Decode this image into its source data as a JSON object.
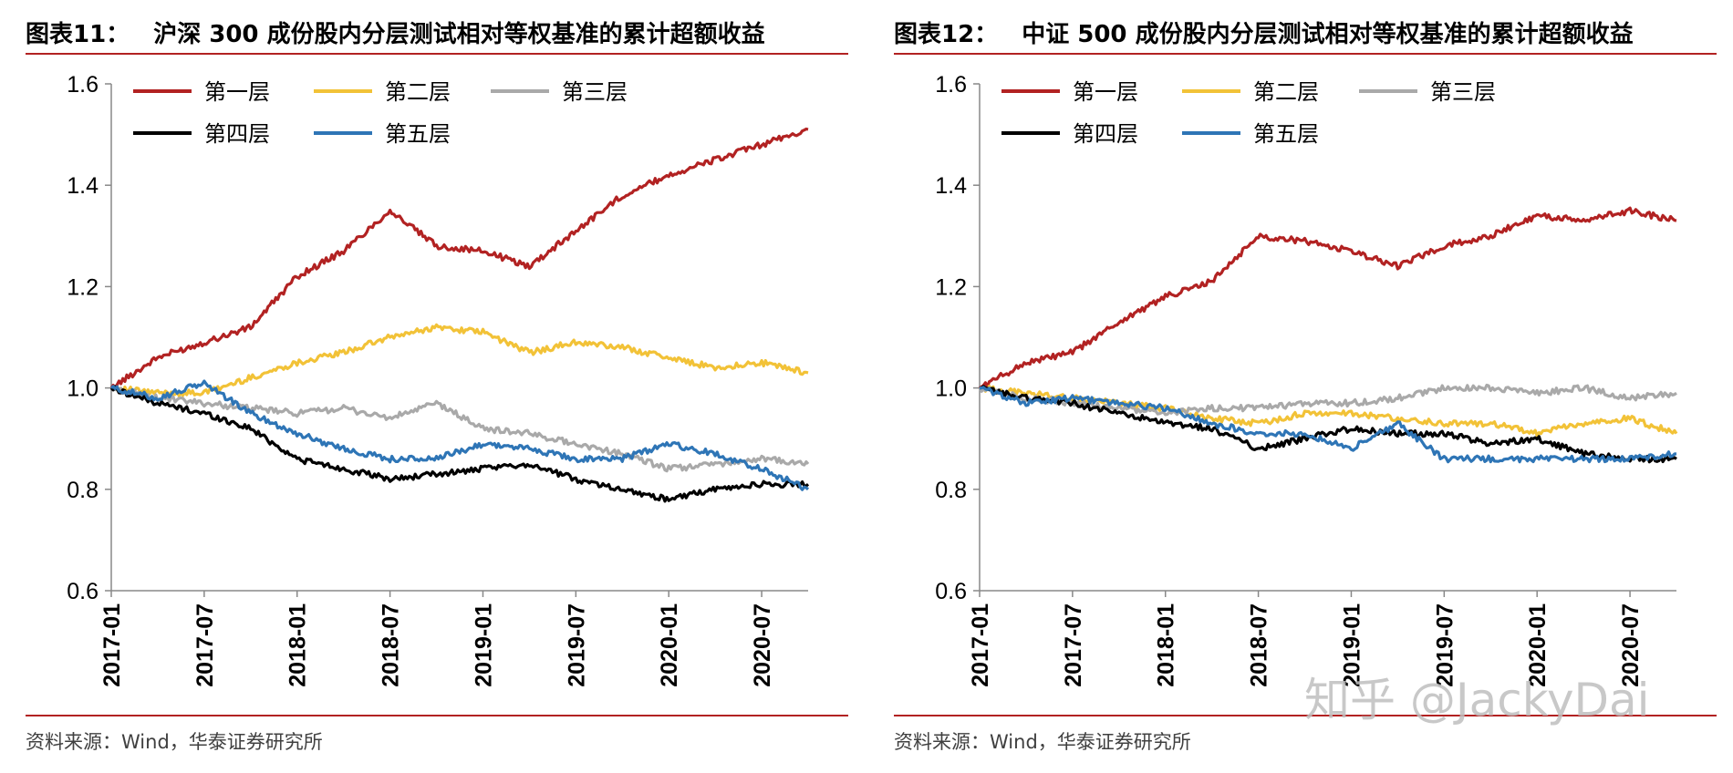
{
  "page": {
    "watermark": "知乎 @JackyDai",
    "source": "资料来源：Wind，华泰证券研究所"
  },
  "chart_data": [
    {
      "type": "line",
      "figure_label": "图表11：",
      "title": "沪深 300 成份股内分层测试相对等权基准的累计超额收益",
      "ylim": [
        0.6,
        1.6
      ],
      "yticks": [
        "0.6",
        "0.8",
        "1.0",
        "1.2",
        "1.4",
        "1.6"
      ],
      "xlim": [
        "2017-01",
        "2020-10"
      ],
      "xticks": [
        "2017-01",
        "2017-07",
        "2018-01",
        "2018-07",
        "2019-01",
        "2019-07",
        "2020-01",
        "2020-07"
      ],
      "grid": false,
      "legend_position": "top-left",
      "x": [
        "2017-01",
        "2017-04",
        "2017-07",
        "2017-10",
        "2018-01",
        "2018-04",
        "2018-07",
        "2018-10",
        "2019-01",
        "2019-04",
        "2019-07",
        "2019-10",
        "2020-01",
        "2020-04",
        "2020-07",
        "2020-10"
      ],
      "series": [
        {
          "name": "第一层",
          "color": "#b22222",
          "values": [
            1.0,
            1.06,
            1.09,
            1.12,
            1.22,
            1.27,
            1.35,
            1.28,
            1.27,
            1.24,
            1.31,
            1.38,
            1.42,
            1.45,
            1.48,
            1.51
          ]
        },
        {
          "name": "第二层",
          "color": "#f2c237",
          "values": [
            1.0,
            0.99,
            0.99,
            1.02,
            1.05,
            1.07,
            1.1,
            1.12,
            1.11,
            1.07,
            1.09,
            1.08,
            1.06,
            1.04,
            1.05,
            1.03
          ]
        },
        {
          "name": "第三层",
          "color": "#a9a9a9",
          "values": [
            1.0,
            0.98,
            0.97,
            0.96,
            0.95,
            0.96,
            0.94,
            0.97,
            0.92,
            0.91,
            0.89,
            0.87,
            0.84,
            0.85,
            0.86,
            0.85
          ]
        },
        {
          "name": "第四层",
          "color": "#000000",
          "values": [
            1.0,
            0.97,
            0.95,
            0.92,
            0.86,
            0.84,
            0.82,
            0.83,
            0.84,
            0.85,
            0.82,
            0.8,
            0.78,
            0.8,
            0.81,
            0.81
          ]
        },
        {
          "name": "第五层",
          "color": "#2e75b6",
          "values": [
            1.0,
            0.98,
            1.01,
            0.95,
            0.91,
            0.88,
            0.86,
            0.86,
            0.89,
            0.88,
            0.86,
            0.86,
            0.89,
            0.87,
            0.84,
            0.8
          ]
        }
      ]
    },
    {
      "type": "line",
      "figure_label": "图表12：",
      "title": "中证 500 成份股内分层测试相对等权基准的累计超额收益",
      "ylim": [
        0.6,
        1.6
      ],
      "yticks": [
        "0.6",
        "0.8",
        "1.0",
        "1.2",
        "1.4",
        "1.6"
      ],
      "xlim": [
        "2017-01",
        "2020-10"
      ],
      "xticks": [
        "2017-01",
        "2017-07",
        "2018-01",
        "2018-07",
        "2019-01",
        "2019-07",
        "2020-01",
        "2020-07"
      ],
      "grid": false,
      "legend_position": "top-left",
      "x": [
        "2017-01",
        "2017-04",
        "2017-07",
        "2017-10",
        "2018-01",
        "2018-04",
        "2018-07",
        "2018-10",
        "2019-01",
        "2019-04",
        "2019-07",
        "2019-10",
        "2020-01",
        "2020-04",
        "2020-07",
        "2020-10"
      ],
      "series": [
        {
          "name": "第一层",
          "color": "#b22222",
          "values": [
            1.0,
            1.05,
            1.07,
            1.13,
            1.18,
            1.21,
            1.3,
            1.29,
            1.27,
            1.24,
            1.28,
            1.3,
            1.34,
            1.33,
            1.35,
            1.33
          ]
        },
        {
          "name": "第二层",
          "color": "#f2c237",
          "values": [
            1.0,
            0.99,
            0.98,
            0.97,
            0.96,
            0.94,
            0.93,
            0.95,
            0.95,
            0.94,
            0.93,
            0.93,
            0.91,
            0.93,
            0.94,
            0.91
          ]
        },
        {
          "name": "第三层",
          "color": "#a9a9a9",
          "values": [
            1.0,
            0.98,
            0.97,
            0.96,
            0.95,
            0.96,
            0.96,
            0.97,
            0.97,
            0.98,
            1.0,
            1.0,
            0.99,
            1.0,
            0.98,
            0.99
          ]
        },
        {
          "name": "第四层",
          "color": "#000000",
          "values": [
            1.0,
            0.98,
            0.97,
            0.95,
            0.93,
            0.92,
            0.88,
            0.9,
            0.92,
            0.91,
            0.91,
            0.89,
            0.9,
            0.87,
            0.86,
            0.86
          ]
        },
        {
          "name": "第五层",
          "color": "#2e75b6",
          "values": [
            1.0,
            0.97,
            0.98,
            0.97,
            0.96,
            0.93,
            0.91,
            0.91,
            0.88,
            0.93,
            0.86,
            0.86,
            0.86,
            0.86,
            0.86,
            0.87
          ]
        }
      ]
    }
  ]
}
